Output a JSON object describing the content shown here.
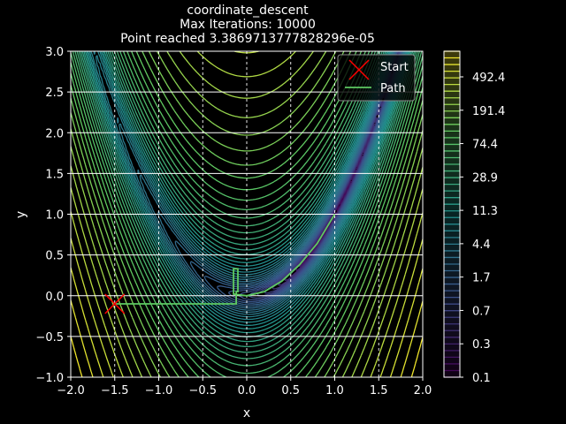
{
  "chart_data": {
    "type": "contour",
    "title_lines": [
      "coordinate_descent",
      "Max Iterations: 10000",
      "Point reached 3.3869713777828296e-05"
    ],
    "xlabel": "x",
    "ylabel": "y",
    "xlim": [
      -2.0,
      2.0
    ],
    "ylim": [
      -1.0,
      3.0
    ],
    "x_ticks": [
      "−2.0",
      "−1.5",
      "−1.0",
      "−0.5",
      "0.0",
      "0.5",
      "1.0",
      "1.5",
      "2.0"
    ],
    "y_ticks": [
      "3.0",
      "2.5",
      "2.0",
      "1.5",
      "1.0",
      "0.5",
      "0.0",
      "−0.5",
      "−1.0"
    ],
    "grid": true,
    "colormap": "viridis",
    "contour_levels": {
      "min": 0.1,
      "max": 2500,
      "count": 50,
      "scale": "log"
    },
    "colorbar_ticks": [
      "492.4",
      "191.4",
      "74.4",
      "28.9",
      "11.3",
      "4.4",
      "1.7",
      "0.7",
      "0.3",
      "0.1"
    ],
    "legend": {
      "position": "top-right",
      "entries": [
        {
          "label": "Start",
          "marker": "x",
          "color": "#ff0000"
        },
        {
          "label": "Path",
          "marker": "line",
          "color": "#5ec962"
        }
      ]
    },
    "start_point": {
      "x": -1.5,
      "y": -0.1
    },
    "path": [
      [
        -1.5,
        -0.1
      ],
      [
        -0.12,
        -0.1
      ],
      [
        -0.12,
        0.05
      ],
      [
        -0.1,
        0.05
      ],
      [
        -0.1,
        0.33
      ],
      [
        -0.15,
        0.33
      ],
      [
        -0.15,
        0.02
      ],
      [
        0.0,
        0.0
      ],
      [
        0.2,
        0.05
      ],
      [
        0.4,
        0.18
      ],
      [
        0.6,
        0.38
      ],
      [
        0.8,
        0.64
      ],
      [
        1.0,
        1.0
      ]
    ],
    "colors": {
      "background": "#000000",
      "grid": "#ffffff",
      "path": "#5ec962",
      "start_marker": "#ff0000"
    }
  }
}
